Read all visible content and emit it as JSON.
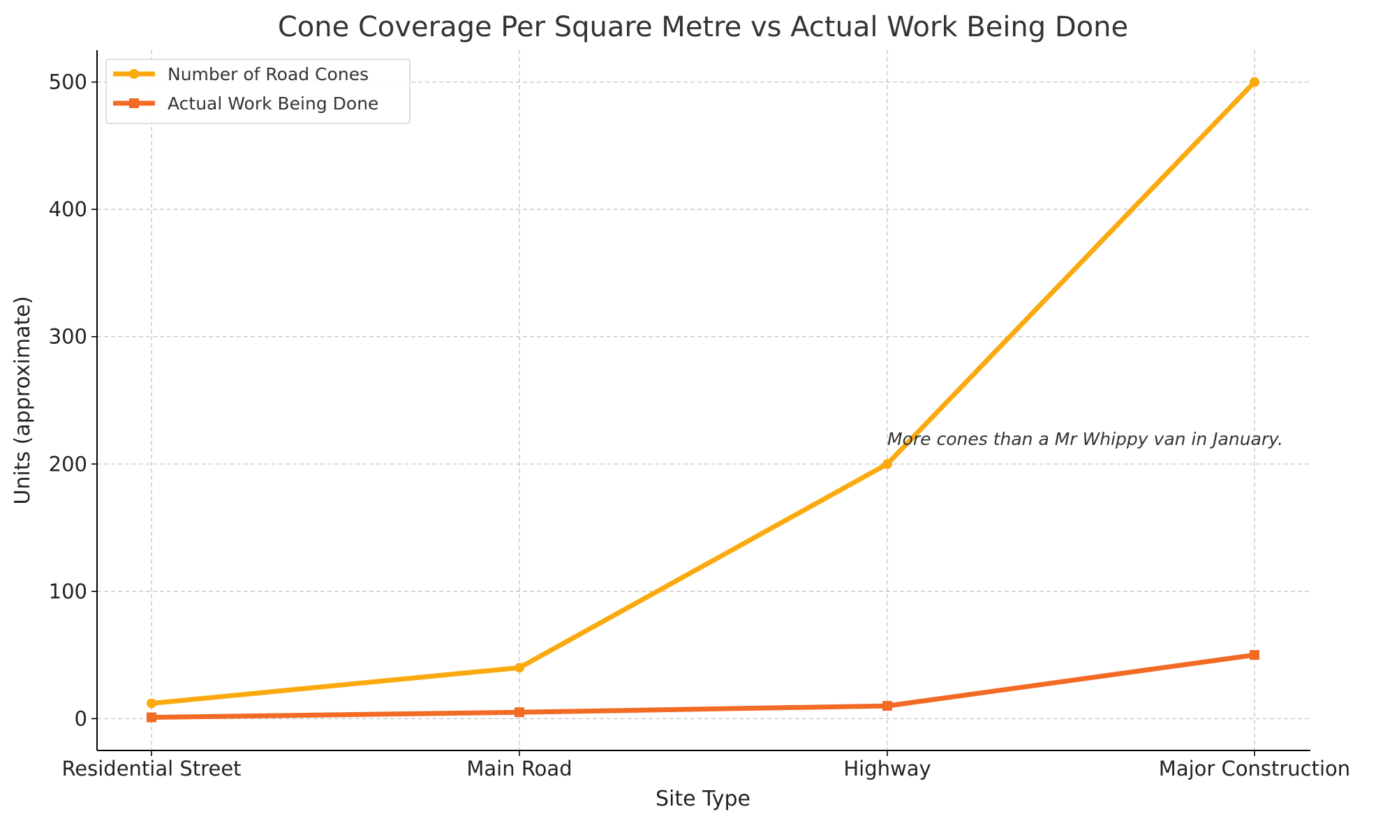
{
  "chart_data": {
    "type": "line",
    "title": "Cone Coverage Per Square Metre vs Actual Work Being Done",
    "xlabel": "Site Type",
    "ylabel": "Units (approximate)",
    "categories": [
      "Residential Street",
      "Main Road",
      "Highway",
      "Major Construction"
    ],
    "ylim": [
      -25,
      525
    ],
    "yticks": [
      0,
      100,
      200,
      300,
      400,
      500
    ],
    "grid": true,
    "legend_position": "top-left",
    "series": [
      {
        "name": "Number of Road Cones",
        "values": [
          12,
          40,
          200,
          500
        ],
        "color": "#FAAA0F",
        "marker": "circle"
      },
      {
        "name": "Actual Work Being Done",
        "values": [
          1,
          5,
          10,
          50
        ],
        "color": "#F26A23",
        "marker": "square"
      }
    ],
    "annotations": [
      {
        "text": "More cones than a Mr Whippy van in January.",
        "category": "Highway",
        "y": 220
      }
    ]
  }
}
